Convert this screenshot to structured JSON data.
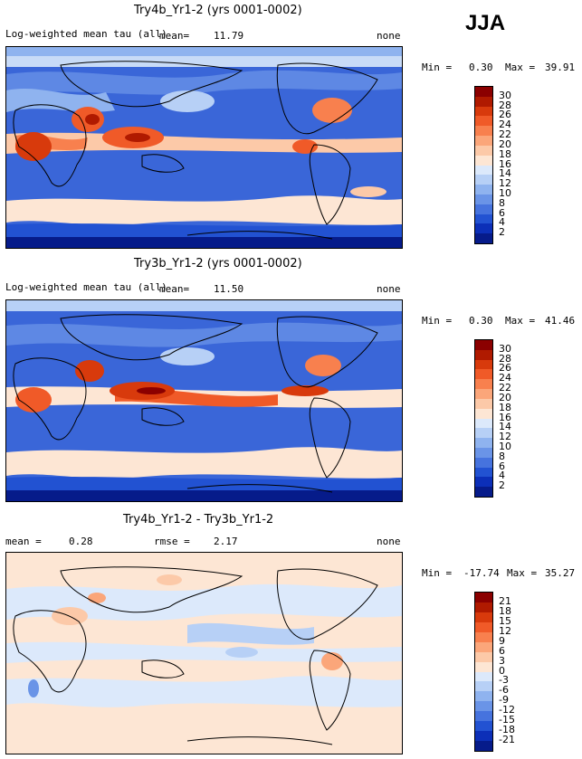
{
  "season": "JJA",
  "panels": [
    {
      "title": "Try4b_Yr1-2 (yrs 0001-0002)",
      "variable": "Log-weighted mean tau (all)",
      "mean_label": "mean=",
      "mean_value": "11.79",
      "rmse_label": "",
      "rmse_value": "",
      "right_label": "none",
      "min_label": "Min =",
      "min_value": "0.30",
      "max_label": "Max =",
      "max_value": "39.91",
      "colorbar_labels": [
        "30",
        "28",
        "26",
        "24",
        "22",
        "20",
        "18",
        "16",
        "14",
        "12",
        "10",
        "8",
        "6",
        "4",
        "2"
      ],
      "colorbar_colors": [
        "#8b0000",
        "#b01a00",
        "#d83a0c",
        "#f05a28",
        "#f8804e",
        "#fba67a",
        "#fcc9a8",
        "#fde6d4",
        "#dce9fb",
        "#b7d0f6",
        "#8fb3ef",
        "#6a94e7",
        "#4673de",
        "#2252d2",
        "#0c2fb8",
        "#061b8a"
      ]
    },
    {
      "title": "Try3b_Yr1-2 (yrs 0001-0002)",
      "variable": "Log-weighted mean tau (all)",
      "mean_label": "mean=",
      "mean_value": "11.50",
      "rmse_label": "",
      "rmse_value": "",
      "right_label": "none",
      "min_label": "Min =",
      "min_value": "0.30",
      "max_label": "Max =",
      "max_value": "41.46",
      "colorbar_labels": [
        "30",
        "28",
        "26",
        "24",
        "22",
        "20",
        "18",
        "16",
        "14",
        "12",
        "10",
        "8",
        "6",
        "4",
        "2"
      ],
      "colorbar_colors": [
        "#8b0000",
        "#b01a00",
        "#d83a0c",
        "#f05a28",
        "#f8804e",
        "#fba67a",
        "#fcc9a8",
        "#fde6d4",
        "#dce9fb",
        "#b7d0f6",
        "#8fb3ef",
        "#6a94e7",
        "#4673de",
        "#2252d2",
        "#0c2fb8",
        "#061b8a"
      ]
    },
    {
      "title": "Try4b_Yr1-2 - Try3b_Yr1-2",
      "variable": "",
      "mean_label": "mean =",
      "mean_value": "0.28",
      "rmse_label": "rmse =",
      "rmse_value": "2.17",
      "right_label": "none",
      "min_label": "Min =",
      "min_value": "-17.74",
      "max_label": "Max =",
      "max_value": "35.27",
      "colorbar_labels": [
        "21",
        "18",
        "15",
        "12",
        "9",
        "6",
        "3",
        "0",
        "-3",
        "-6",
        "-9",
        "-12",
        "-15",
        "-18",
        "-21"
      ],
      "colorbar_colors": [
        "#8b0000",
        "#b01a00",
        "#d83a0c",
        "#f05a28",
        "#f8804e",
        "#fba67a",
        "#fcc9a8",
        "#fde6d4",
        "#dce9fb",
        "#b7d0f6",
        "#8fb3ef",
        "#6a94e7",
        "#4673de",
        "#2252d2",
        "#0c2fb8",
        "#061b8a"
      ]
    }
  ]
}
